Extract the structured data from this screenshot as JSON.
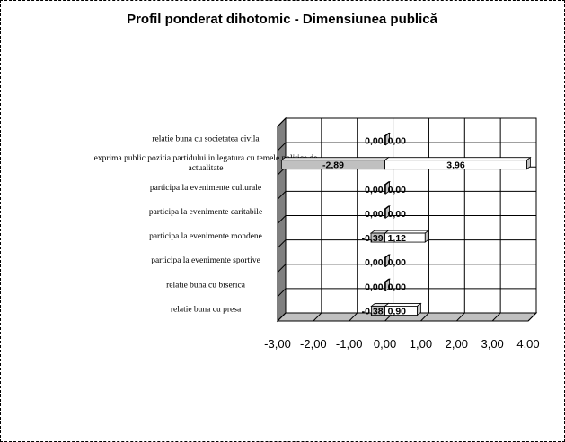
{
  "chart_data": {
    "type": "bar",
    "orientation": "horizontal",
    "style": "3d",
    "title": "Profil ponderat dihotomic - Dimensiunea publică",
    "xlabel": "",
    "ylabel": "",
    "xlim": [
      -3,
      4
    ],
    "x_ticks": [
      -3,
      -2,
      -1,
      0,
      1,
      2,
      3,
      4
    ],
    "x_tick_labels": [
      "-3,00",
      "-2,00",
      "-1,00",
      "0,00",
      "1,00",
      "2,00",
      "3,00",
      "4,00"
    ],
    "grid": true,
    "legend": "none",
    "categories": [
      "relatie buna cu societatea civila",
      [
        "exprima public pozitia partidului in legatura cu temele politice de",
        "actualitate"
      ],
      "participa la evenimente culturale",
      "participa la evenimente caritabile",
      "participa la evenimente mondene",
      "participa la evenimente sportive",
      "relatie buna cu biserica",
      "relatie buna cu presa"
    ],
    "series": [
      {
        "values": [
          0.0,
          -2.89,
          0.0,
          0.0,
          -0.39,
          0.0,
          0.0,
          -0.38
        ],
        "labels": [
          "0,00",
          "-2,89",
          "0,00",
          "0,00",
          "-0,39",
          "0,00",
          "0,00",
          "-0,38"
        ],
        "color": "#c0c0c0"
      },
      {
        "values": [
          0.0,
          3.96,
          0.0,
          0.0,
          1.12,
          0.0,
          0.0,
          0.9
        ],
        "labels": [
          "0,00",
          "3,96",
          "0,00",
          "0,00",
          "1,12",
          "0,00",
          "0,00",
          "0,90"
        ],
        "color": "#ffffff"
      }
    ],
    "colors": {
      "wall": "#808080",
      "floor": "#c0c0c0",
      "grid": "#000000"
    }
  }
}
